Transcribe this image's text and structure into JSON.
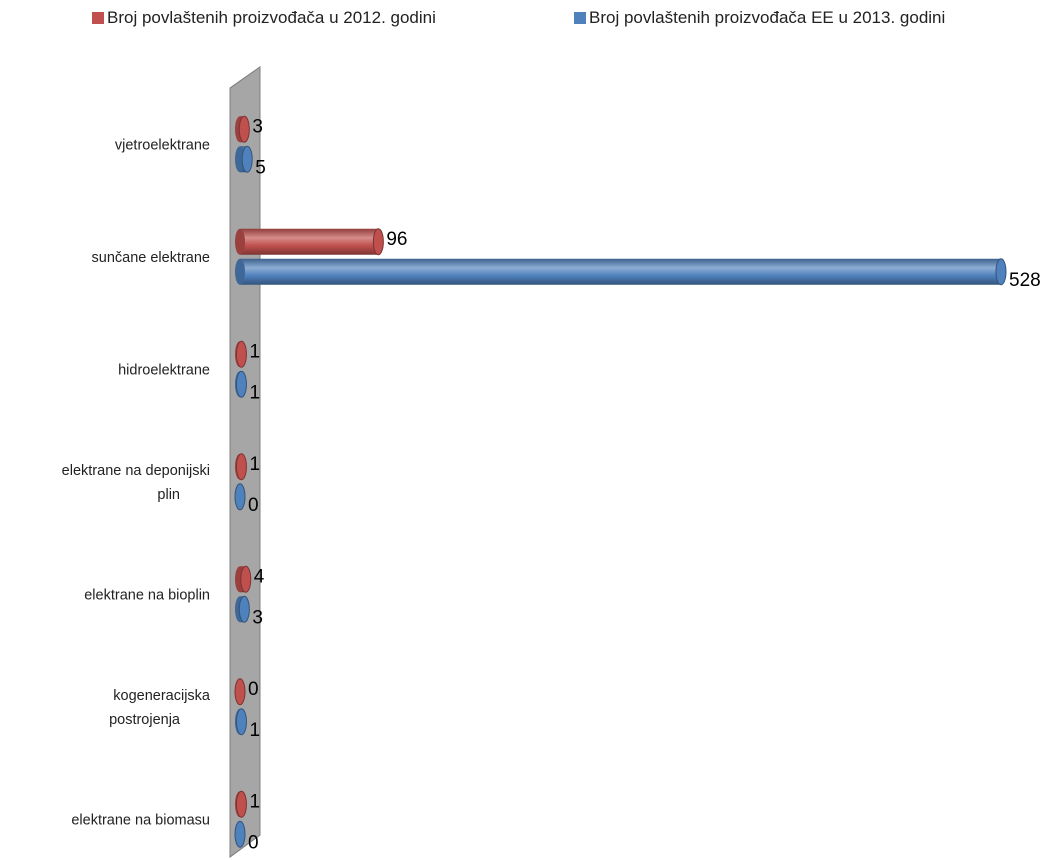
{
  "chart_data": {
    "type": "bar",
    "orientation": "horizontal",
    "style": "3d-cylinder",
    "categories": [
      "vjetroelektrane",
      "sunčane elektrane",
      "hidroelektrane",
      "elektrane na deponijski plin",
      "elektrane na bioplin",
      "kogeneracijska postrojenja",
      "elektrane na biomasu"
    ],
    "series": [
      {
        "name": "Broj povlaštenih proizvođača u 2012. godini",
        "color": "#c0504d",
        "values": [
          3,
          96,
          1,
          1,
          4,
          0,
          1
        ]
      },
      {
        "name": "Broj povlaštenih proizvođača EE u 2013. godini",
        "color": "#4f81bd",
        "values": [
          5,
          528,
          1,
          0,
          3,
          1,
          0
        ]
      }
    ],
    "title": "",
    "xlabel": "",
    "ylabel": "",
    "xlim": [
      0,
      528
    ],
    "grid": false,
    "legend_position": "top",
    "wall_color": "#a6a6a6"
  }
}
